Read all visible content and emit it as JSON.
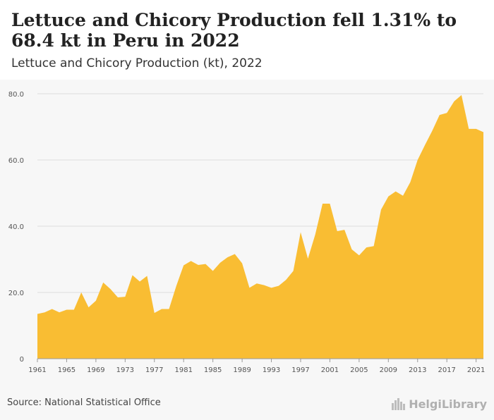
{
  "header": {
    "title": "Lettuce and Chicory Production fell 1.31% to 68.4 kt in Peru in 2022",
    "subtitle": "Lettuce and Chicory Production (kt), 2022"
  },
  "footer": {
    "source": "Source: National Statistical Office",
    "logo_text": "HelgiLibrary"
  },
  "colors": {
    "area": "#f9bd33",
    "grid": "#dddddd",
    "background": "#f7f7f7"
  },
  "chart_data": {
    "type": "area",
    "x": [
      1961,
      1962,
      1963,
      1964,
      1965,
      1966,
      1967,
      1968,
      1969,
      1970,
      1971,
      1972,
      1973,
      1974,
      1975,
      1976,
      1977,
      1978,
      1979,
      1980,
      1981,
      1982,
      1983,
      1984,
      1985,
      1986,
      1987,
      1988,
      1989,
      1990,
      1991,
      1992,
      1993,
      1994,
      1995,
      1996,
      1997,
      1998,
      1999,
      2000,
      2001,
      2002,
      2003,
      2004,
      2005,
      2006,
      2007,
      2008,
      2009,
      2010,
      2011,
      2012,
      2013,
      2014,
      2015,
      2016,
      2017,
      2018,
      2019,
      2020,
      2021,
      2022
    ],
    "series": [
      {
        "values": [
          13.5,
          14.0,
          15.0,
          14.0,
          14.8,
          14.8,
          20.0,
          15.5,
          17.5,
          23.0,
          21.0,
          18.5,
          18.7,
          25.2,
          23.3,
          25.0,
          13.8,
          15.0,
          15.0,
          22.0,
          28.2,
          29.5,
          28.3,
          28.6,
          26.5,
          29.0,
          30.6,
          31.6,
          28.8,
          21.4,
          22.7,
          22.2,
          21.4,
          22.0,
          23.8,
          26.5,
          38.2,
          30.2,
          37.5,
          46.8,
          46.8,
          38.5,
          38.9,
          33.0,
          31.2,
          33.6,
          34.0,
          45.0,
          49.0,
          50.5,
          49.2,
          53.3,
          60.0,
          64.5,
          68.8,
          73.6,
          74.2,
          77.7,
          79.6,
          69.4,
          69.4,
          68.4
        ]
      }
    ],
    "y_ticks": [
      "0",
      "20.0",
      "40.0",
      "60.0",
      "80.0"
    ],
    "x_ticks": [
      "1961",
      "1965",
      "1969",
      "1973",
      "1977",
      "1981",
      "1985",
      "1989",
      "1993",
      "1997",
      "2001",
      "2005",
      "2009",
      "2013",
      "2017",
      "2021"
    ],
    "ylim": [
      0,
      80
    ],
    "grid": true
  }
}
